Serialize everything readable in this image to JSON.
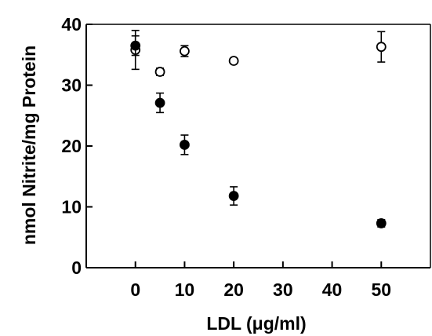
{
  "chart_data": {
    "type": "scatter",
    "title": "",
    "xlabel": "LDL (μg/ml)",
    "ylabel": "nmol Nitrite/mg Protein",
    "xlim": [
      -10,
      60
    ],
    "ylim": [
      0,
      40
    ],
    "x_ticks": [
      0,
      10,
      20,
      30,
      40,
      50
    ],
    "x_tick_labels": [
      "0",
      "10",
      "20",
      "30",
      "40",
      "50"
    ],
    "y_ticks": [
      0,
      10,
      20,
      30,
      40
    ],
    "y_tick_labels": [
      "0",
      "10",
      "20",
      "30",
      "40"
    ],
    "grid": false,
    "series": [
      {
        "marker": "open-circle",
        "x": [
          0,
          5,
          10,
          20,
          50
        ],
        "y": [
          35.8,
          32.2,
          35.6,
          34.0,
          36.3
        ],
        "err": [
          3.2,
          0.6,
          0.9,
          0.4,
          2.5
        ]
      },
      {
        "marker": "filled-circle",
        "x": [
          0,
          5,
          10,
          20,
          50
        ],
        "y": [
          36.5,
          27.1,
          20.2,
          11.8,
          7.3
        ],
        "err": [
          1.6,
          1.6,
          1.6,
          1.5,
          0.6
        ]
      }
    ]
  }
}
